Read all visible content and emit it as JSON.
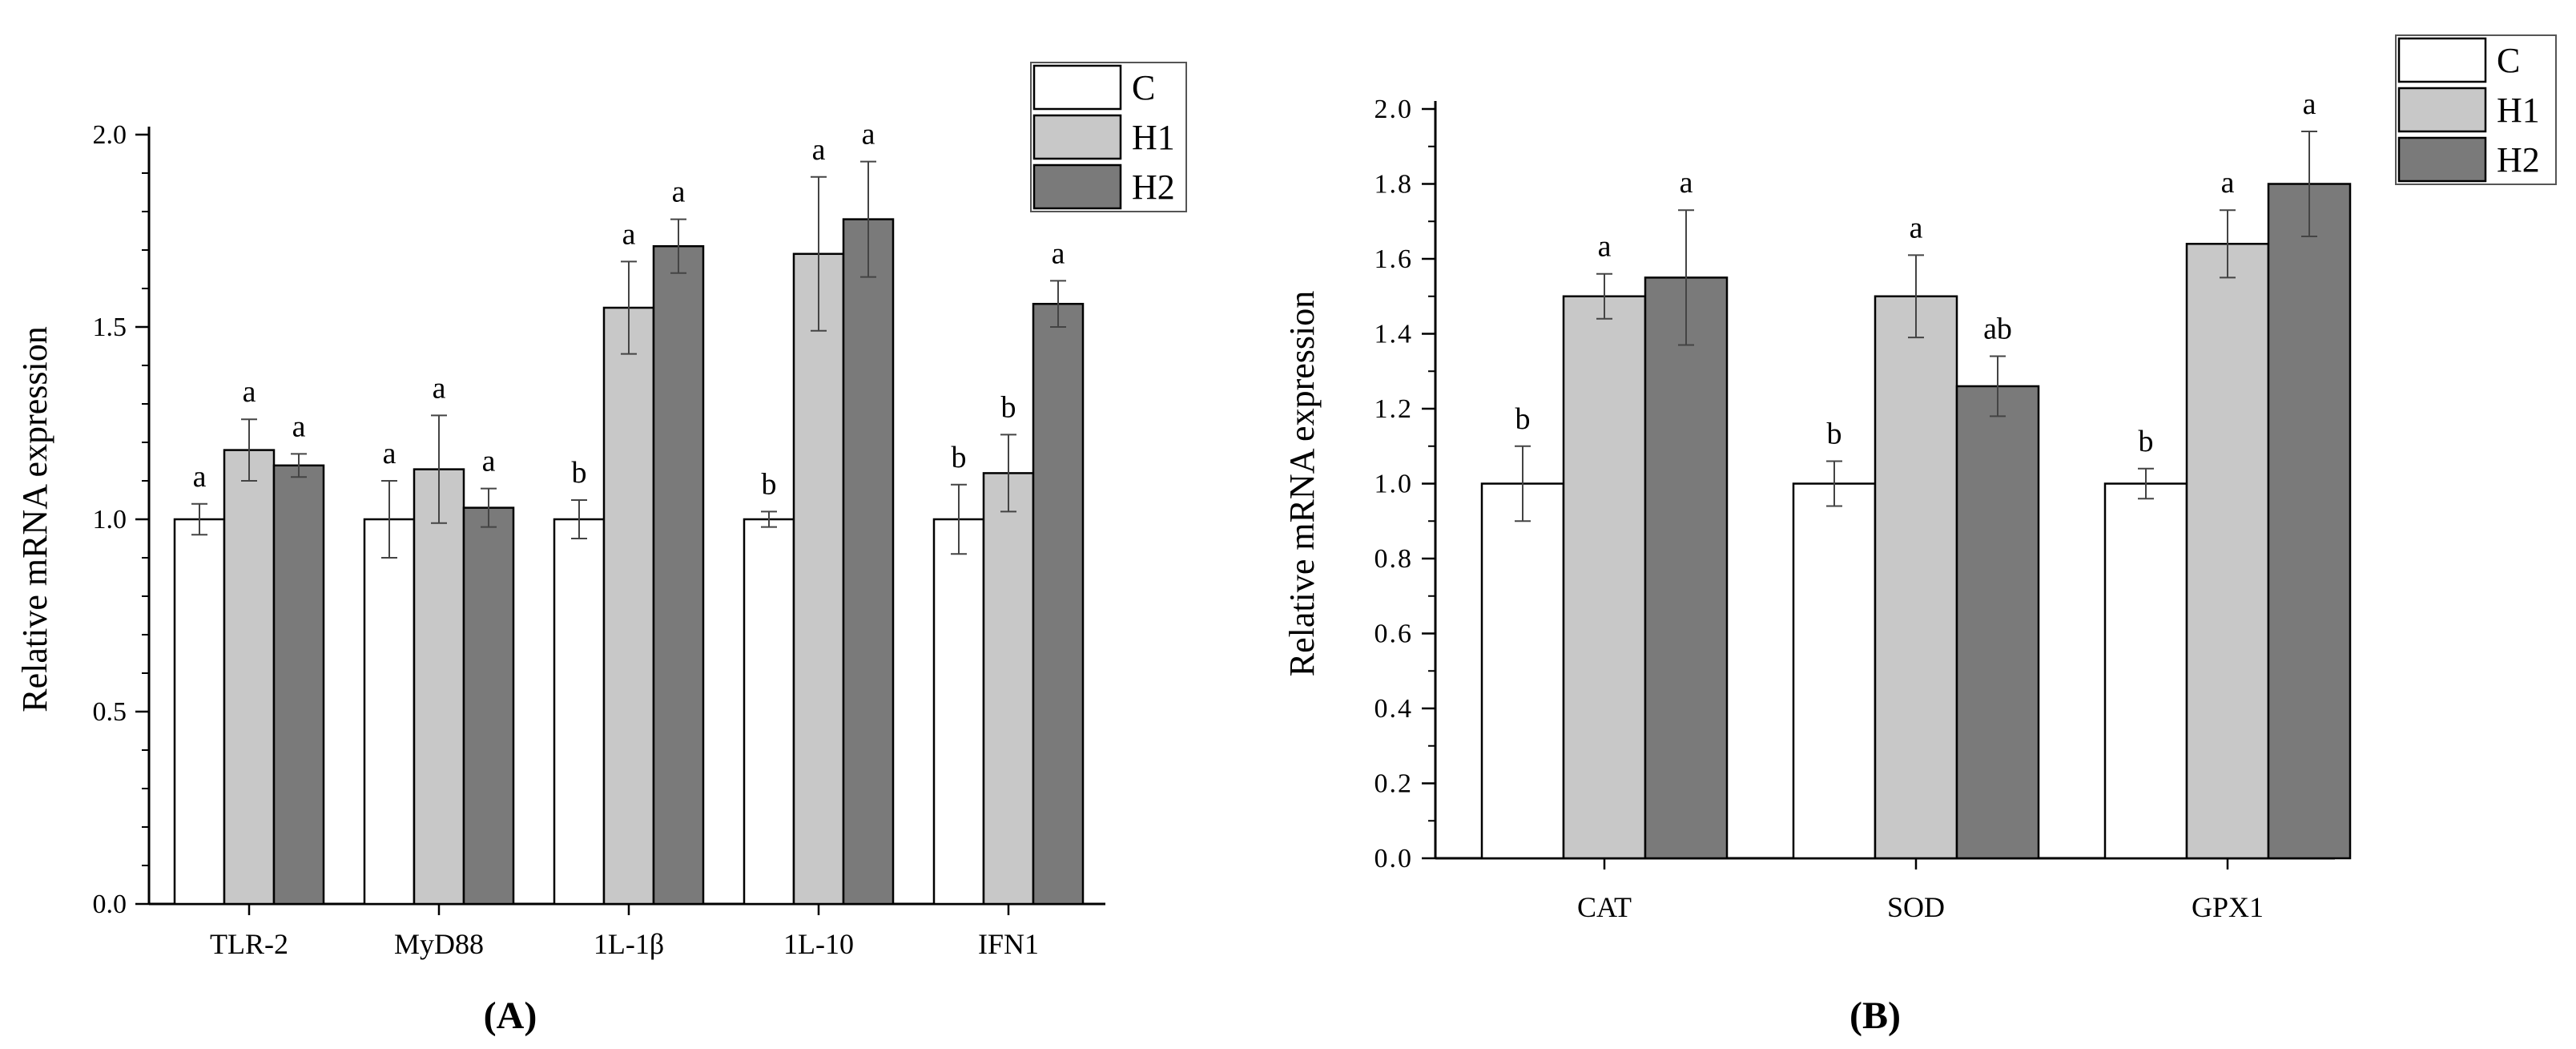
{
  "chart_data": [
    {
      "type": "bar",
      "panel_label": "(A)",
      "ylabel": "Relative mRNA expression",
      "xlabel": "",
      "ylim": [
        0,
        2.0
      ],
      "yticks": [
        "0.0",
        "0.5",
        "1.0",
        "1.5",
        "2.0"
      ],
      "categories": [
        "TLR-2",
        "MyD88",
        "1L-1β",
        "1L-10",
        "IFN1"
      ],
      "series": [
        {
          "name": "C",
          "color": "#ffffff",
          "values": [
            1.0,
            1.0,
            1.0,
            1.0,
            1.0
          ],
          "errors": [
            0.04,
            0.1,
            0.05,
            0.02,
            0.09
          ],
          "letters": [
            "a",
            "a",
            "b",
            "b",
            "b"
          ]
        },
        {
          "name": "H1",
          "color": "#c8c8c8",
          "values": [
            1.18,
            1.13,
            1.55,
            1.69,
            1.12
          ],
          "errors": [
            0.08,
            0.14,
            0.12,
            0.2,
            0.1
          ],
          "letters": [
            "a",
            "a",
            "a",
            "a",
            "b"
          ]
        },
        {
          "name": "H2",
          "color": "#7a7a7a",
          "values": [
            1.14,
            1.03,
            1.71,
            1.78,
            1.56
          ],
          "errors": [
            0.03,
            0.05,
            0.07,
            0.15,
            0.06
          ],
          "letters": [
            "a",
            "a",
            "a",
            "a",
            "a"
          ]
        }
      ],
      "legend": [
        "C",
        "H1",
        "H2"
      ],
      "legend_position": "top-right"
    },
    {
      "type": "bar",
      "panel_label": "(B)",
      "ylabel": "Relative mRNA expression",
      "xlabel": "",
      "ylim": [
        0,
        2.0
      ],
      "yticks": [
        "0.0",
        "0.2",
        "0.4",
        "0.6",
        "0.8",
        "1.0",
        "1.2",
        "1.4",
        "1.6",
        "1.8",
        "2.0"
      ],
      "categories": [
        "CAT",
        "SOD",
        "GPX1"
      ],
      "series": [
        {
          "name": "C",
          "color": "#ffffff",
          "values": [
            1.0,
            1.0,
            1.0
          ],
          "errors": [
            0.1,
            0.06,
            0.04
          ],
          "letters": [
            "b",
            "b",
            "b"
          ]
        },
        {
          "name": "H1",
          "color": "#c8c8c8",
          "values": [
            1.5,
            1.5,
            1.64
          ],
          "errors": [
            0.06,
            0.11,
            0.09
          ],
          "letters": [
            "a",
            "a",
            "a"
          ]
        },
        {
          "name": "H2",
          "color": "#7a7a7a",
          "values": [
            1.55,
            1.26,
            1.8
          ],
          "errors": [
            0.18,
            0.08,
            0.14
          ],
          "letters": [
            "a",
            "ab",
            "a"
          ]
        }
      ],
      "legend": [
        "C",
        "H1",
        "H2"
      ],
      "legend_position": "top-right"
    }
  ]
}
